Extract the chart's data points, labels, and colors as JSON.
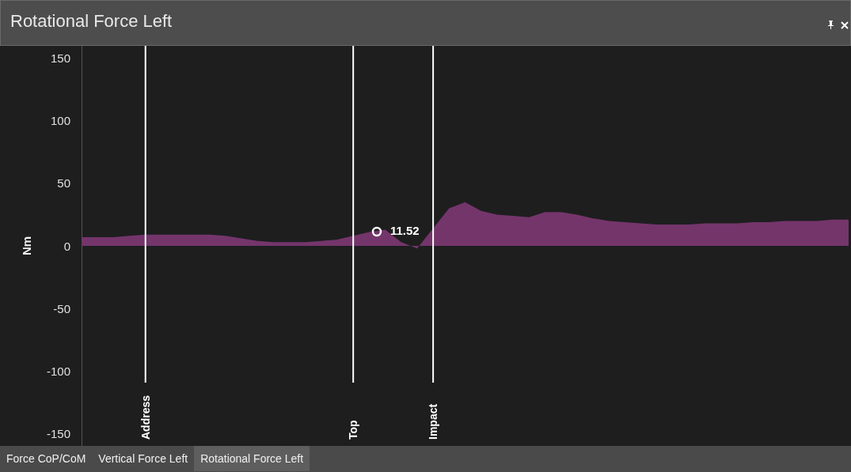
{
  "chart_data": {
    "type": "area",
    "title": "Rotational Force Left",
    "ylabel": "Nm",
    "categories": [
      null,
      null,
      null,
      null,
      "Address",
      null,
      null,
      null,
      null,
      null,
      null,
      null,
      null,
      null,
      null,
      null,
      null,
      "Top",
      null,
      null,
      null,
      null,
      "Impact",
      null,
      null,
      null,
      null,
      null,
      null,
      null,
      null,
      null,
      null,
      null,
      null,
      null,
      null,
      null,
      null,
      null,
      null,
      null,
      null,
      null,
      null,
      null,
      null,
      null,
      null
    ],
    "color": "#74356b",
    "values": [
      7,
      7,
      7,
      8,
      9,
      9,
      9,
      9,
      9,
      8,
      6,
      4,
      3,
      3,
      3,
      4,
      5,
      8,
      11,
      13,
      3,
      -2,
      14,
      30,
      35,
      28,
      25,
      24,
      23,
      27,
      27,
      25,
      22,
      20,
      19,
      18,
      17,
      17,
      17,
      18,
      18,
      18,
      19,
      19,
      20,
      20,
      20,
      21,
      21
    ],
    "ylim": [
      -160,
      160
    ],
    "yticks": [
      -150,
      -100,
      -50,
      0,
      50,
      100,
      150
    ],
    "grid": false,
    "ref_lines": [
      {
        "axis": "x",
        "value": "Address",
        "color": "#ffffff"
      },
      {
        "axis": "x",
        "value": "Top",
        "color": "#ffffff"
      },
      {
        "axis": "x",
        "value": "Impact",
        "color": "#ffffff"
      }
    ],
    "annotations": [
      "11.52",
      "Force CoP/CoM",
      "Vertical Force Left",
      "Rotational Force Left"
    ]
  }
}
